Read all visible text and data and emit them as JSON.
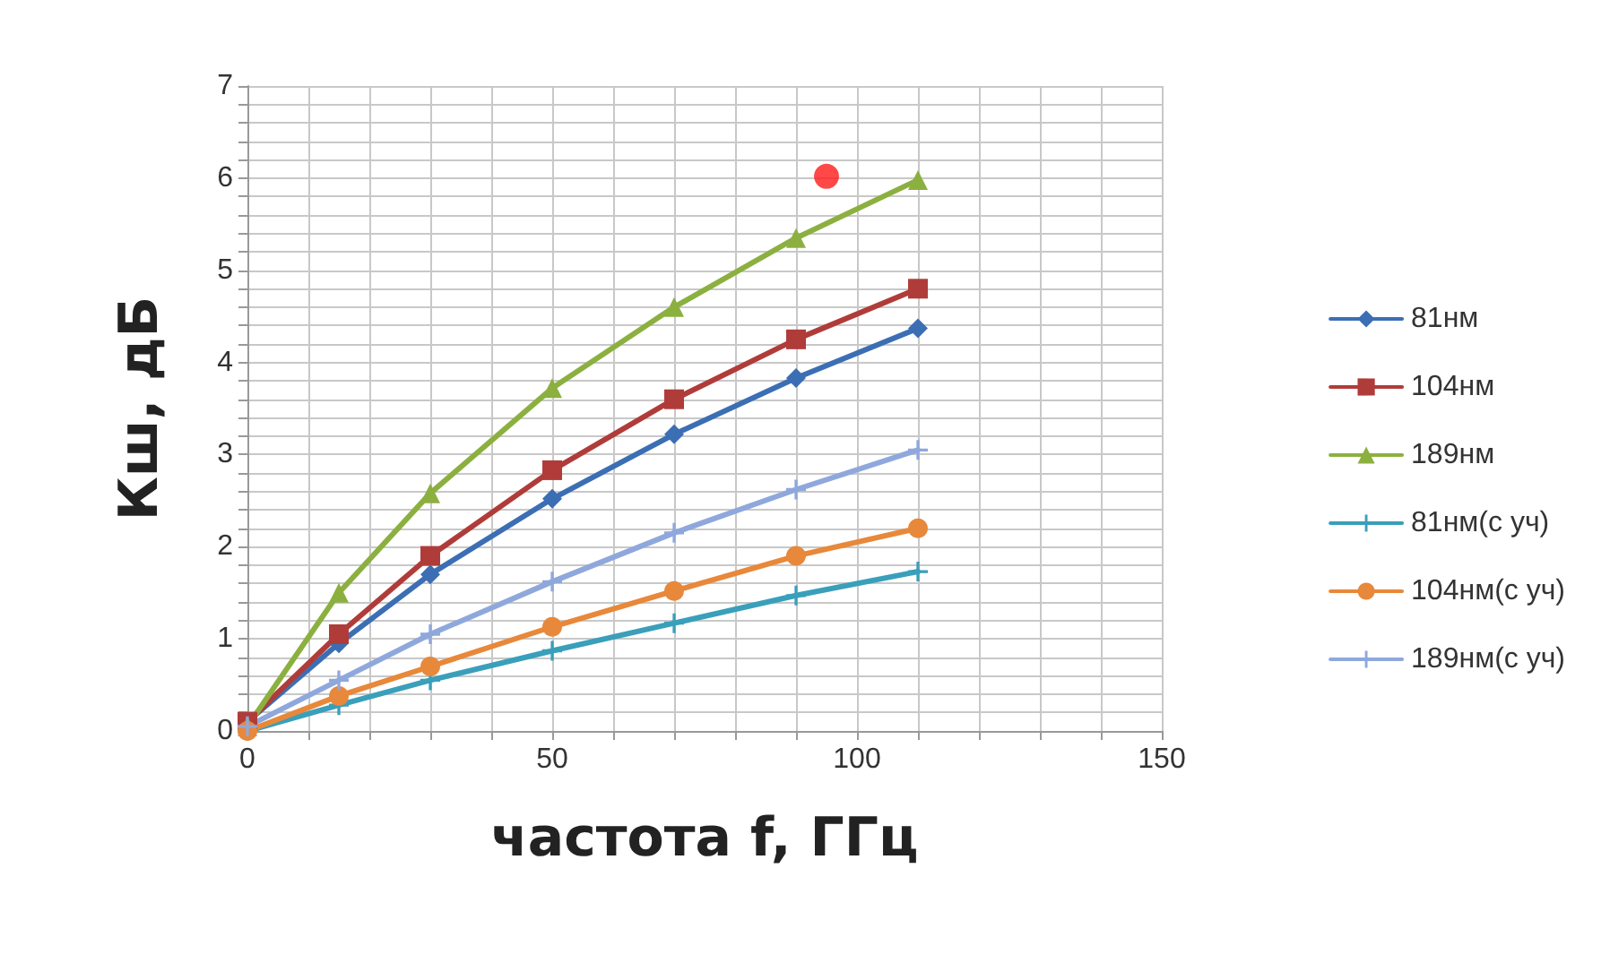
{
  "chart_data": {
    "type": "line",
    "xlabel": "частота f, ГГц",
    "ylabel": "Кш, дБ",
    "x": [
      0,
      15,
      30,
      50,
      70,
      90,
      110
    ],
    "xlim": [
      0,
      150
    ],
    "ylim": [
      0,
      7
    ],
    "xticks": [
      0,
      {
        "value": 10,
        "label": null
      },
      {
        "value": 20,
        "label": null
      },
      {
        "value": 30,
        "label": null
      },
      {
        "value": 40,
        "label": null
      },
      50,
      {
        "value": 60,
        "label": null
      },
      {
        "value": 70,
        "label": null
      },
      {
        "value": 80,
        "label": null
      },
      {
        "value": 90,
        "label": null
      },
      100,
      {
        "value": 110,
        "label": null
      },
      {
        "value": 120,
        "label": null
      },
      {
        "value": 130,
        "label": null
      },
      {
        "value": 140,
        "label": null
      },
      150
    ],
    "yticks": [
      0,
      {
        "value": 0.2,
        "label": null
      },
      {
        "value": 0.4,
        "label": null
      },
      {
        "value": 0.6,
        "label": null
      },
      {
        "value": 0.8,
        "label": null
      },
      1,
      {
        "value": 1.2,
        "label": null
      },
      {
        "value": 1.4,
        "label": null
      },
      {
        "value": 1.6,
        "label": null
      },
      {
        "value": 1.8,
        "label": null
      },
      2,
      {
        "value": 2.2,
        "label": null
      },
      {
        "value": 2.4,
        "label": null
      },
      {
        "value": 2.6,
        "label": null
      },
      {
        "value": 2.8,
        "label": null
      },
      3,
      {
        "value": 3.2,
        "label": null
      },
      {
        "value": 3.4,
        "label": null
      },
      {
        "value": 3.6,
        "label": null
      },
      {
        "value": 3.8,
        "label": null
      },
      4,
      {
        "value": 4.2,
        "label": null
      },
      {
        "value": 4.4,
        "label": null
      },
      {
        "value": 4.6,
        "label": null
      },
      {
        "value": 4.8,
        "label": null
      },
      5,
      {
        "value": 5.2,
        "label": null
      },
      {
        "value": 5.4,
        "label": null
      },
      {
        "value": 5.6,
        "label": null
      },
      {
        "value": 5.8,
        "label": null
      },
      6,
      {
        "value": 6.2,
        "label": null
      },
      {
        "value": 6.4,
        "label": null
      },
      {
        "value": 6.6,
        "label": null
      },
      {
        "value": 6.8,
        "label": null
      },
      7
    ],
    "grid": true,
    "legend": "right",
    "line_style": "solid",
    "series": [
      {
        "name": "81нм",
        "color": "#3c6eb4",
        "marker": "diamond",
        "values": [
          0.1,
          0.95,
          1.7,
          2.52,
          3.22,
          3.83,
          4.37
        ]
      },
      {
        "name": "104нм",
        "color": "#b03c3a",
        "marker": "square",
        "values": [
          0.1,
          1.05,
          1.9,
          2.83,
          3.6,
          4.25,
          4.8
        ]
      },
      {
        "name": "189нм",
        "color": "#8cb040",
        "marker": "triangle",
        "values": [
          0.05,
          1.5,
          2.58,
          3.72,
          4.6,
          5.35,
          5.98
        ]
      },
      {
        "name": "81нм(с уч)",
        "color": "#3a9fba",
        "marker": "cross",
        "values": [
          0,
          0.28,
          0.55,
          0.87,
          1.17,
          1.47,
          1.73
        ]
      },
      {
        "name": "104нм(с уч)",
        "color": "#e8883a",
        "marker": "circle",
        "values": [
          0,
          0.38,
          0.7,
          1.13,
          1.52,
          1.9,
          2.2
        ]
      },
      {
        "name": "189нм(с уч)",
        "color": "#8fa8dc",
        "marker": "cross",
        "values": [
          0.05,
          0.55,
          1.05,
          1.62,
          2.15,
          2.62,
          3.05
        ]
      },
      {
        "type": "scatter",
        "color": "#ff1a1a",
        "marker": "circle",
        "x": [
          95
        ],
        "values": [
          6.02
        ]
      }
    ]
  }
}
